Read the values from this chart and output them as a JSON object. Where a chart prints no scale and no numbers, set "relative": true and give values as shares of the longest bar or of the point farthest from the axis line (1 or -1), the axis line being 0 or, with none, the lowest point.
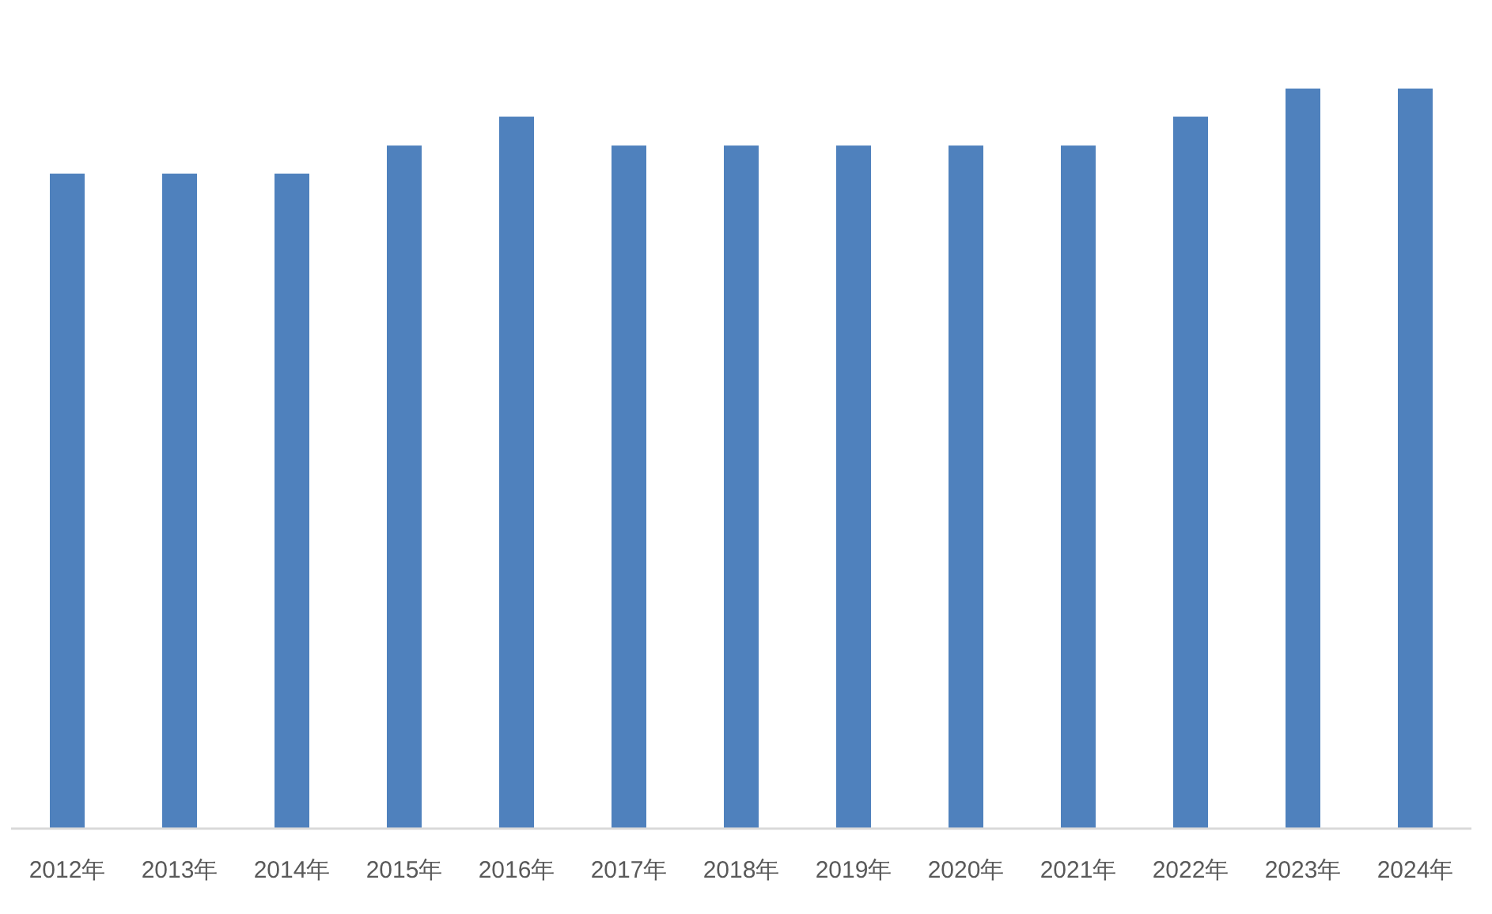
{
  "chart_data": {
    "type": "bar",
    "categories": [
      "2012年",
      "2013年",
      "2014年",
      "2015年",
      "2016年",
      "2017年",
      "2018年",
      "2019年",
      "2020年",
      "2021年",
      "2022年",
      "2023年",
      "2024年"
    ],
    "relative": true,
    "values": [
      0.885,
      0.885,
      0.885,
      0.923,
      0.962,
      0.923,
      0.923,
      0.923,
      0.923,
      0.923,
      0.962,
      1,
      1
    ],
    "color": "#4f81bd",
    "grid": false
  }
}
